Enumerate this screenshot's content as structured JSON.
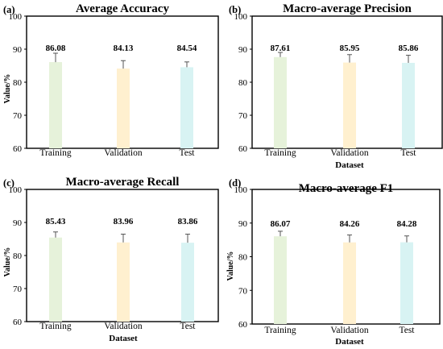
{
  "chart_data": [
    {
      "type": "bar",
      "panel_label": "(a)",
      "title": "Average Accuracy",
      "xlabel": "",
      "ylabel": "Value/%",
      "categories": [
        "Training",
        "Validation",
        "Test"
      ],
      "values": [
        86.08,
        84.13,
        84.54
      ],
      "errors": [
        2.7,
        2.4,
        1.6
      ],
      "colors": [
        "#e6f2da",
        "#fff0cf",
        "#d8f3f3"
      ],
      "ylim": [
        60,
        100
      ],
      "yticks": [
        60,
        70,
        80,
        90,
        100
      ],
      "data_labels": [
        "86.08",
        "84.13",
        "84.54"
      ]
    },
    {
      "type": "bar",
      "panel_label": "(b)",
      "title": "Macro-average Precision",
      "xlabel": "Dataset",
      "ylabel": "",
      "categories": [
        "Training",
        "Validation",
        "Test"
      ],
      "values": [
        87.61,
        85.95,
        85.86
      ],
      "errors": [
        1.4,
        2.4,
        2.3
      ],
      "colors": [
        "#e6f2da",
        "#fff0cf",
        "#d8f3f3"
      ],
      "ylim": [
        60,
        100
      ],
      "yticks": [
        60,
        70,
        80,
        90,
        100
      ],
      "data_labels": [
        "87.61",
        "85.95",
        "85.86"
      ]
    },
    {
      "type": "bar",
      "panel_label": "(c)",
      "title": "Macro-average  Recall",
      "xlabel": "Dataset",
      "ylabel": "Value/%",
      "categories": [
        "Training",
        "Validation",
        "Test"
      ],
      "values": [
        85.43,
        83.96,
        83.86
      ],
      "errors": [
        1.7,
        2.5,
        2.6
      ],
      "colors": [
        "#e6f2da",
        "#fff0cf",
        "#d8f3f3"
      ],
      "ylim": [
        60,
        100
      ],
      "yticks": [
        60,
        70,
        80,
        90,
        100
      ],
      "data_labels": [
        "85.43",
        "83.96",
        "83.86"
      ]
    },
    {
      "type": "bar",
      "panel_label": "(d)",
      "title": "Macro-average  F1",
      "xlabel": "Dataset",
      "ylabel": "Value/%",
      "categories": [
        "Training",
        "Validation",
        "Test"
      ],
      "values": [
        86.07,
        84.26,
        84.28
      ],
      "errors": [
        1.5,
        2.2,
        1.9
      ],
      "colors": [
        "#e6f2da",
        "#fff0cf",
        "#d8f3f3"
      ],
      "ylim": [
        60,
        100
      ],
      "yticks": [
        60,
        70,
        80,
        90,
        100
      ],
      "data_labels": [
        "86.07",
        "84.26",
        "84.28"
      ]
    }
  ]
}
